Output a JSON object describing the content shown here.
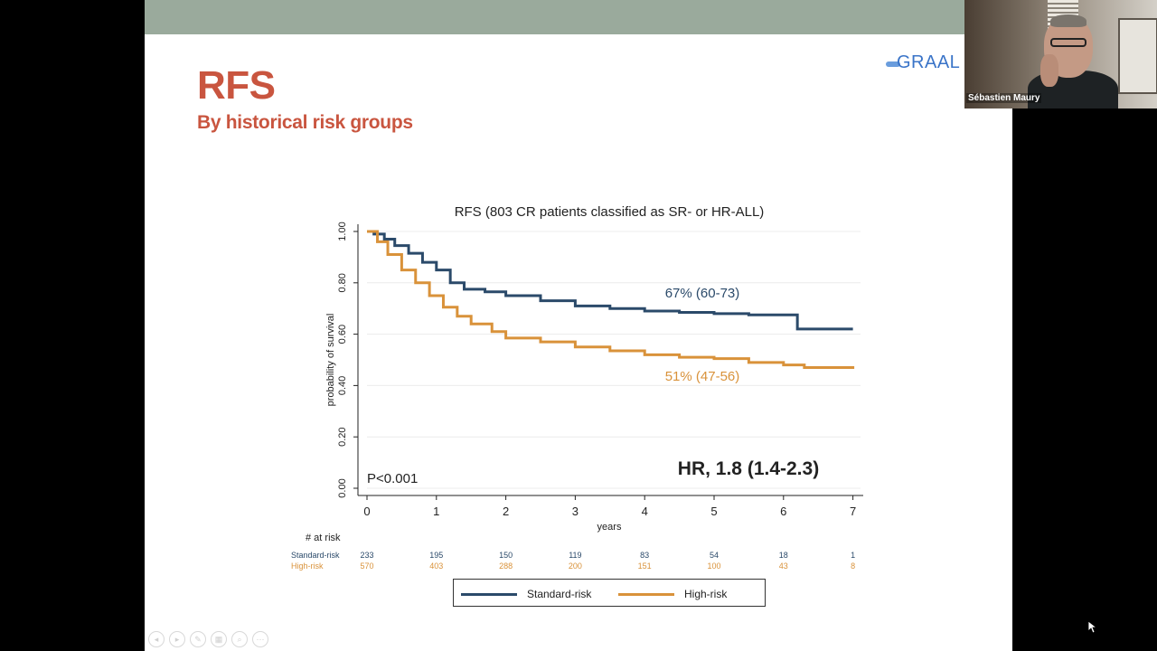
{
  "slide": {
    "title": "RFS",
    "subtitle": "By historical risk groups",
    "logo_text": "GRAAL"
  },
  "webcam": {
    "participant_name": "Sébastien Maury"
  },
  "chart_data": {
    "type": "line",
    "title": "RFS (803 CR patients classified as SR- or HR-ALL)",
    "xlabel": "years",
    "ylabel": "probability of survival",
    "xlim": [
      0,
      7
    ],
    "ylim": [
      0,
      1
    ],
    "x_ticks": [
      "0",
      "1",
      "2",
      "3",
      "4",
      "5",
      "6",
      "7"
    ],
    "y_ticks": [
      "0.00",
      "0.20",
      "0.40",
      "0.60",
      "0.80",
      "1.00"
    ],
    "grid": true,
    "legend_position": "bottom",
    "series": [
      {
        "name": "Standard-risk",
        "color": "#2b4a6a",
        "points": [
          [
            0,
            1.0
          ],
          [
            0.1,
            0.99
          ],
          [
            0.25,
            0.97
          ],
          [
            0.4,
            0.945
          ],
          [
            0.6,
            0.915
          ],
          [
            0.8,
            0.88
          ],
          [
            1.0,
            0.85
          ],
          [
            1.2,
            0.8
          ],
          [
            1.4,
            0.775
          ],
          [
            1.7,
            0.765
          ],
          [
            2.0,
            0.75
          ],
          [
            2.5,
            0.73
          ],
          [
            3.0,
            0.71
          ],
          [
            3.5,
            0.7
          ],
          [
            4.0,
            0.69
          ],
          [
            4.5,
            0.685
          ],
          [
            5.0,
            0.68
          ],
          [
            5.5,
            0.675
          ],
          [
            6.2,
            0.675
          ],
          [
            6.2,
            0.62
          ],
          [
            7.0,
            0.62
          ]
        ],
        "annotation": "67% (60-73)"
      },
      {
        "name": "High-risk",
        "color": "#d9923a",
        "points": [
          [
            0,
            1.0
          ],
          [
            0.15,
            0.96
          ],
          [
            0.3,
            0.91
          ],
          [
            0.5,
            0.85
          ],
          [
            0.7,
            0.8
          ],
          [
            0.9,
            0.75
          ],
          [
            1.1,
            0.705
          ],
          [
            1.3,
            0.67
          ],
          [
            1.5,
            0.64
          ],
          [
            1.8,
            0.61
          ],
          [
            2.0,
            0.585
          ],
          [
            2.5,
            0.57
          ],
          [
            3.0,
            0.55
          ],
          [
            3.5,
            0.535
          ],
          [
            4.0,
            0.52
          ],
          [
            4.5,
            0.51
          ],
          [
            5.0,
            0.505
          ],
          [
            5.5,
            0.49
          ],
          [
            6.0,
            0.48
          ],
          [
            6.3,
            0.47
          ],
          [
            7.0,
            0.465
          ]
        ],
        "annotation": "51% (47-56)"
      }
    ],
    "annotations": {
      "p_value": "P<0.001",
      "hazard_ratio": "HR, 1.8 (1.4-2.3)"
    },
    "at_risk": {
      "title": "# at risk",
      "rows": [
        {
          "label": "Standard-risk",
          "color": "#2b4a6a",
          "values": [
            "233",
            "195",
            "150",
            "119",
            "83",
            "54",
            "18",
            "1"
          ]
        },
        {
          "label": "High-risk",
          "color": "#d9923a",
          "values": [
            "570",
            "403",
            "288",
            "200",
            "151",
            "100",
            "43",
            "8"
          ]
        }
      ]
    }
  }
}
